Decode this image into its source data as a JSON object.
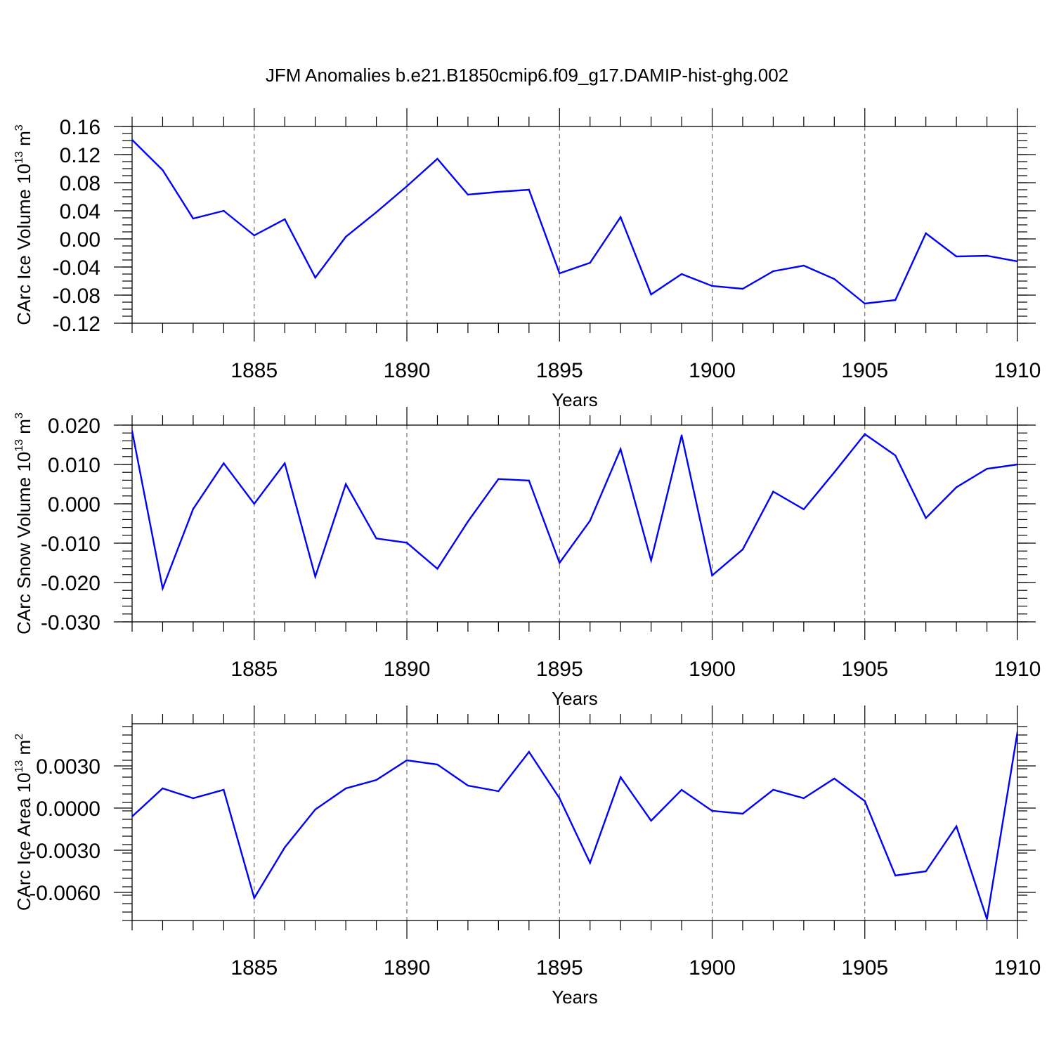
{
  "title": "JFM Anomalies b.e21.B1850cmip6.f09_g17.DAMIP-hist-ghg.002",
  "colors": {
    "line": "#0000ff",
    "axis": "#000000",
    "grid": "#555555"
  },
  "chart_data": [
    {
      "type": "line",
      "title": "",
      "xlabel": "Years",
      "ylabel": "CArc Ice Volume 10",
      "ylabel_exp": "13",
      "ylabel_unit": " m",
      "ylabel_unit_exp": "3",
      "xlim": [
        1881,
        1910
      ],
      "ylim": [
        -0.12,
        0.16
      ],
      "grid": "vertical dashed at labeled years",
      "x_ticks": [
        1885,
        1890,
        1895,
        1900,
        1905,
        1910
      ],
      "x_tick_labels": [
        "1885",
        "1890",
        "1895",
        "1900",
        "1905",
        "1910"
      ],
      "y_ticks": [
        -0.12,
        -0.08,
        -0.04,
        0.0,
        0.04,
        0.08,
        0.12,
        0.16
      ],
      "y_tick_labels": [
        "-0.12",
        "-0.08",
        "-0.04",
        "0.00",
        "0.04",
        "0.08",
        "0.12",
        "0.16"
      ],
      "y_minor_step": 0.01,
      "x": [
        1881,
        1882,
        1883,
        1884,
        1885,
        1886,
        1887,
        1888,
        1889,
        1890,
        1891,
        1892,
        1893,
        1894,
        1895,
        1896,
        1897,
        1898,
        1899,
        1900,
        1901,
        1902,
        1903,
        1904,
        1905,
        1906,
        1907,
        1908,
        1909,
        1910
      ],
      "series": [
        {
          "values": [
            0.141,
            0.098,
            0.029,
            0.04,
            0.005,
            0.028,
            -0.055,
            0.003,
            0.038,
            0.075,
            0.114,
            0.063,
            0.067,
            0.07,
            -0.049,
            -0.034,
            0.031,
            -0.079,
            -0.05,
            -0.067,
            -0.071,
            -0.046,
            -0.038,
            -0.057,
            -0.092,
            -0.087,
            0.008,
            -0.025,
            -0.024,
            -0.032
          ]
        }
      ]
    },
    {
      "type": "line",
      "title": "",
      "xlabel": "Years",
      "ylabel": "CArc Snow Volume 10",
      "ylabel_exp": "13",
      "ylabel_unit": " m",
      "ylabel_unit_exp": "3",
      "xlim": [
        1881,
        1910
      ],
      "ylim": [
        -0.03,
        0.02
      ],
      "grid": "vertical dashed at labeled years",
      "x_ticks": [
        1885,
        1890,
        1895,
        1900,
        1905,
        1910
      ],
      "x_tick_labels": [
        "1885",
        "1890",
        "1895",
        "1900",
        "1905",
        "1910"
      ],
      "y_ticks": [
        -0.03,
        -0.02,
        -0.01,
        0.0,
        0.01,
        0.02
      ],
      "y_tick_labels": [
        "-0.030",
        "-0.020",
        "-0.010",
        "0.000",
        "0.010",
        "0.020"
      ],
      "y_minor_step": 0.002,
      "x": [
        1881,
        1882,
        1883,
        1884,
        1885,
        1886,
        1887,
        1888,
        1889,
        1890,
        1891,
        1892,
        1893,
        1894,
        1895,
        1896,
        1897,
        1898,
        1899,
        1900,
        1901,
        1902,
        1903,
        1904,
        1905,
        1906,
        1907,
        1908,
        1909,
        1910
      ],
      "series": [
        {
          "values": [
            0.0185,
            -0.0215,
            -0.0013,
            0.0103,
            0.0,
            0.0103,
            -0.0185,
            0.005,
            -0.0088,
            -0.0099,
            -0.0165,
            -0.0045,
            0.0063,
            0.0059,
            -0.015,
            -0.0043,
            0.0139,
            -0.0144,
            0.0174,
            -0.0182,
            -0.0116,
            0.0031,
            -0.0014,
            0.008,
            0.0177,
            0.0123,
            -0.0036,
            0.0042,
            0.0089,
            0.01
          ]
        }
      ]
    },
    {
      "type": "line",
      "title": "",
      "xlabel": "Years",
      "ylabel": "CArc Ice Area 10",
      "ylabel_exp": "13",
      "ylabel_unit": " m",
      "ylabel_unit_exp": "2",
      "xlim": [
        1881,
        1910
      ],
      "ylim": [
        -0.008,
        0.006
      ],
      "grid": "vertical dashed at labeled years",
      "x_ticks": [
        1885,
        1890,
        1895,
        1900,
        1905,
        1910
      ],
      "x_tick_labels": [
        "1885",
        "1890",
        "1895",
        "1900",
        "1905",
        "1910"
      ],
      "y_ticks": [
        -0.006,
        -0.003,
        0.0,
        0.003
      ],
      "y_tick_labels": [
        "-0.0060",
        "-0.0030",
        "0.0000",
        "0.0030"
      ],
      "y_minor_step": 0.0006,
      "x": [
        1881,
        1882,
        1883,
        1884,
        1885,
        1886,
        1887,
        1888,
        1889,
        1890,
        1891,
        1892,
        1893,
        1894,
        1895,
        1896,
        1897,
        1898,
        1899,
        1900,
        1901,
        1902,
        1903,
        1904,
        1905,
        1906,
        1907,
        1908,
        1909,
        1910
      ],
      "series": [
        {
          "values": [
            -0.0006,
            0.0014,
            0.0007,
            0.0013,
            -0.0064,
            -0.0028,
            -0.0001,
            0.0014,
            0.002,
            0.0034,
            0.0031,
            0.0016,
            0.0012,
            0.004,
            0.0007,
            -0.0039,
            0.0022,
            -0.0009,
            0.0013,
            -0.0002,
            -0.0004,
            0.0013,
            0.0007,
            0.0021,
            0.0005,
            -0.0048,
            -0.0045,
            -0.0013,
            -0.0079,
            0.0054
          ]
        }
      ]
    }
  ]
}
